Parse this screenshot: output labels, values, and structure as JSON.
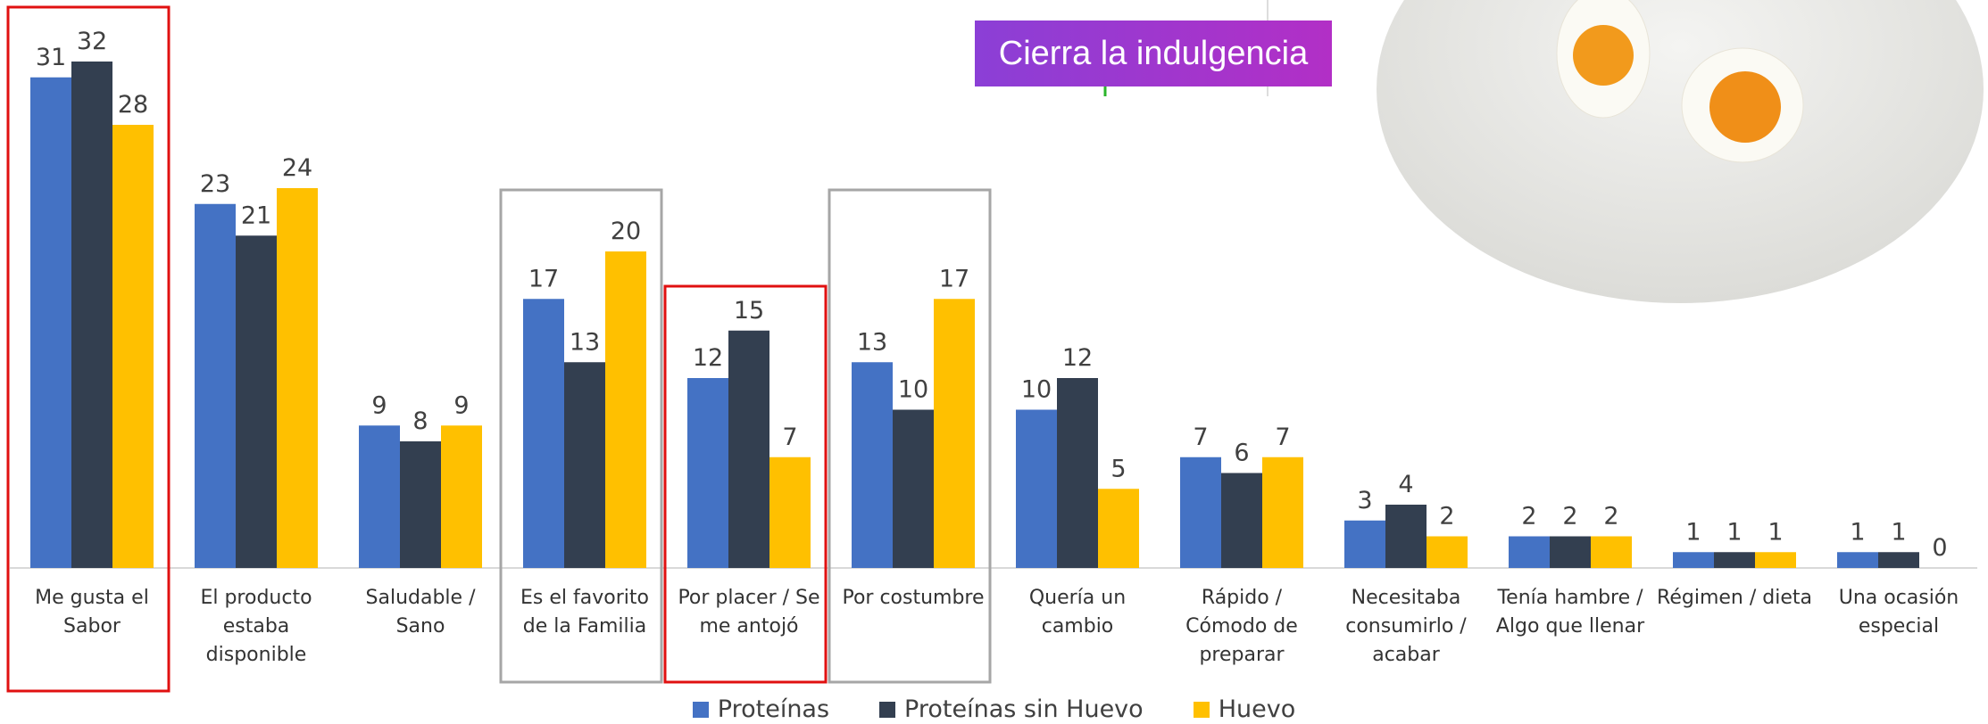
{
  "chart_data": {
    "type": "bar",
    "annotation": "Cierra la indulgencia",
    "categories": [
      "Me gusta el Sabor",
      "El producto estaba disponible",
      "Saludable / Sano",
      "Es el favorito de la Familia",
      "Por placer / Se me antojó",
      "Por costumbre",
      "Quería un cambio",
      "Rápido / Cómodo de preparar",
      "Necesitaba consumirlo / acabar",
      "Tenía hambre / Algo que llenar",
      "Régimen / dieta",
      "Una ocasión especial"
    ],
    "series": [
      {
        "name": "Proteínas",
        "color": "#4472c4",
        "values": [
          31,
          23,
          9,
          17,
          12,
          13,
          10,
          7,
          3,
          2,
          1,
          1
        ]
      },
      {
        "name": "Proteínas sin Huevo",
        "color": "#333f50",
        "values": [
          32,
          21,
          8,
          13,
          15,
          10,
          12,
          6,
          4,
          2,
          1,
          1
        ]
      },
      {
        "name": "Huevo",
        "color": "#ffc000",
        "values": [
          28,
          24,
          9,
          20,
          7,
          17,
          5,
          7,
          2,
          2,
          1,
          0
        ]
      }
    ],
    "legend": "bottom"
  }
}
